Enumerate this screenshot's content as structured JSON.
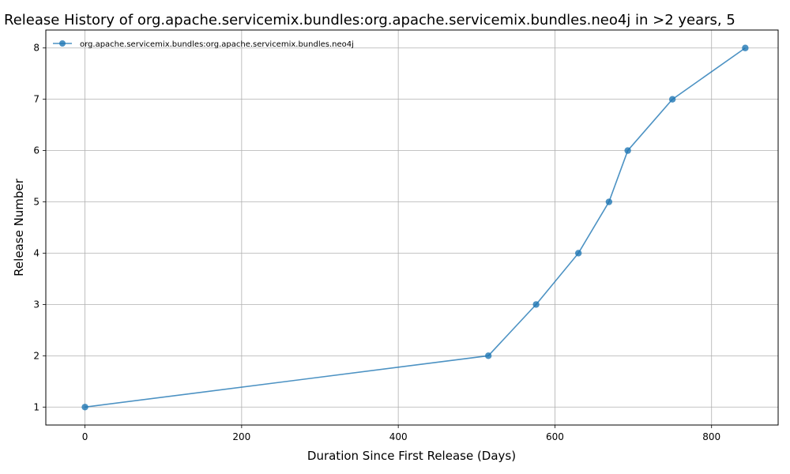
{
  "chart_data": {
    "type": "line",
    "title": "Release History of org.apache.servicemix.bundles:org.apache.servicemix.bundles.neo4j in >2 years, 5",
    "xlabel": "Duration Since First Release (Days)",
    "ylabel": "Release Number",
    "xlim": [
      -50,
      885
    ],
    "ylim": [
      0.65,
      8.35
    ],
    "xticks": [
      0,
      200,
      400,
      600,
      800
    ],
    "yticks": [
      1,
      2,
      3,
      4,
      5,
      6,
      7,
      8
    ],
    "grid": true,
    "legend_position": "top-left",
    "series": [
      {
        "name": "org.apache.servicemix.bundles:org.apache.servicemix.bundles.neo4j",
        "color": "#1f77b4",
        "x": [
          0,
          515,
          576,
          630,
          669,
          693,
          750,
          843
        ],
        "y": [
          1,
          2,
          3,
          4,
          5,
          6,
          7,
          8
        ]
      }
    ]
  }
}
